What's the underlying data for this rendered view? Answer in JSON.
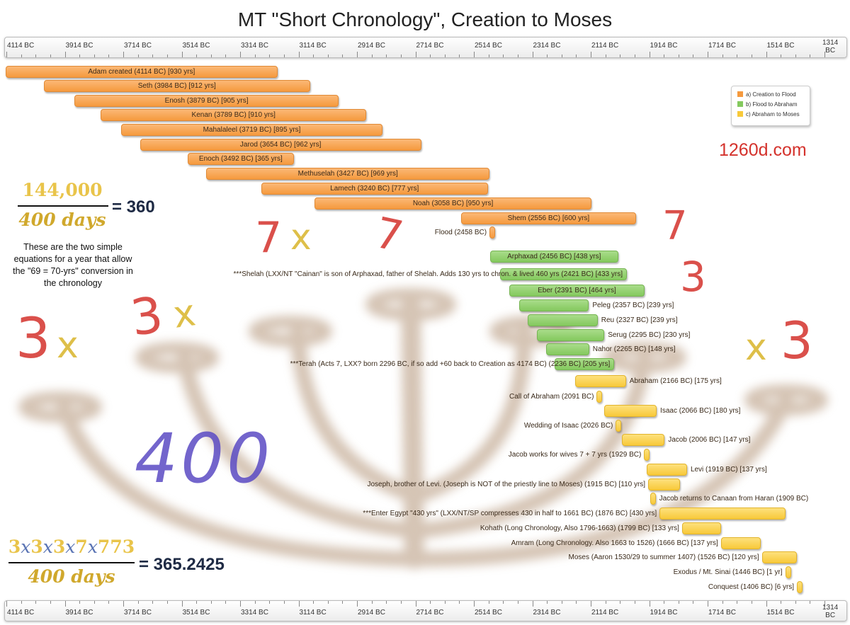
{
  "chart_data": {
    "type": "gantt",
    "title": "MT \"Short Chronology\", Creation to Moses",
    "axis": {
      "unit": "BC",
      "range": [
        4114,
        1314
      ],
      "tick_labels": [
        "4114 BC",
        "3914 BC",
        "3714 BC",
        "3514 BC",
        "3314 BC",
        "3114 BC",
        "2914 BC",
        "2714 BC",
        "2514 BC",
        "2314 BC",
        "2114 BC",
        "1914 BC",
        "1714 BC",
        "1514 BC",
        "1314 BC"
      ],
      "positions": [
        "top",
        "bottom"
      ]
    },
    "legend": {
      "placement": "top-right",
      "items": [
        {
          "label": "a) Creation to Flood",
          "color": "#f59a3e"
        },
        {
          "label": "b) Flood to Abraham",
          "color": "#84c95e"
        },
        {
          "label": "c) Abraham to Moses",
          "color": "#f8c93a"
        }
      ]
    },
    "series": [
      {
        "label": "Adam created (4114 BC) [930 yrs]",
        "start": 4114,
        "years": 930,
        "group": 0
      },
      {
        "label": "Seth (3984 BC) [912 yrs]",
        "start": 3984,
        "years": 912,
        "group": 0
      },
      {
        "label": "Enosh (3879 BC) [905 yrs]",
        "start": 3879,
        "years": 905,
        "group": 0
      },
      {
        "label": "Kenan (3789 BC) [910 yrs]",
        "start": 3789,
        "years": 910,
        "group": 0
      },
      {
        "label": "Mahalaleel (3719 BC) [895 yrs]",
        "start": 3719,
        "years": 895,
        "group": 0
      },
      {
        "label": "Jarod (3654 BC) [962 yrs]",
        "start": 3654,
        "years": 962,
        "group": 0
      },
      {
        "label": "Enoch (3492 BC) [365 yrs]",
        "start": 3492,
        "years": 365,
        "group": 0
      },
      {
        "label": "Methuselah (3427 BC) [969 yrs]",
        "start": 3427,
        "years": 969,
        "group": 0
      },
      {
        "label": "Lamech (3240 BC) [777 yrs]",
        "start": 3240,
        "years": 777,
        "group": 0
      },
      {
        "label": "Noah (3058 BC) [950 yrs]",
        "start": 3058,
        "years": 950,
        "group": 0
      },
      {
        "label": "Shem (2556 BC) [600 yrs]",
        "start": 2556,
        "years": 600,
        "group": 0
      },
      {
        "label": "Flood (2458 BC)",
        "start": 2458,
        "years": 1,
        "group": 0
      },
      {
        "label": "Arphaxad (2456 BC) [438 yrs]",
        "start": 2456,
        "years": 438,
        "group": 1
      },
      {
        "label": "***Shelah (LXX/NT \"Cainan\" is son of Arphaxad, father of Shelah. Adds 130 yrs to chron. & lived 460 yrs (2421 BC) [433 yrs]",
        "start": 2421,
        "years": 433,
        "group": 1
      },
      {
        "label": "Eber (2391 BC) [464 yrs]",
        "start": 2391,
        "years": 464,
        "group": 1
      },
      {
        "label": "Peleg (2357 BC) [239 yrs]",
        "start": 2357,
        "years": 239,
        "group": 1
      },
      {
        "label": "Reu (2327 BC) [239 yrs]",
        "start": 2327,
        "years": 239,
        "group": 1
      },
      {
        "label": "Serug (2295 BC) [230 yrs]",
        "start": 2295,
        "years": 230,
        "group": 1
      },
      {
        "label": "Nahor (2265 BC) [148 yrs]",
        "start": 2265,
        "years": 148,
        "group": 1
      },
      {
        "label": "***Terah (Acts 7, LXX? born 2296 BC, if so add +60 back to Creation as 4174 BC) (2236 BC) [205 yrs]",
        "start": 2236,
        "years": 205,
        "group": 1
      },
      {
        "label": "Abraham (2166 BC) [175 yrs]",
        "start": 2166,
        "years": 175,
        "group": 2
      },
      {
        "label": "Call of Abraham (2091 BC)",
        "start": 2091,
        "years": 1,
        "group": 2
      },
      {
        "label": "Isaac (2066 BC) [180 yrs]",
        "start": 2066,
        "years": 180,
        "group": 2
      },
      {
        "label": "Wedding of Isaac (2026 BC)",
        "start": 2026,
        "years": 1,
        "group": 2
      },
      {
        "label": "Jacob (2006 BC) [147 yrs]",
        "start": 2006,
        "years": 147,
        "group": 2
      },
      {
        "label": "Jacob works for wives 7 + 7 yrs (1929 BC)",
        "start": 1929,
        "years": 1,
        "group": 2
      },
      {
        "label": "Levi (1919 BC) [137 yrs]",
        "start": 1919,
        "years": 137,
        "group": 2
      },
      {
        "label": "Joseph, brother of Levi. (Joseph is NOT of the priestly line to Moses) (1915 BC) [110 yrs]",
        "start": 1915,
        "years": 110,
        "group": 2
      },
      {
        "label": "Jacob returns to Canaan from Haran (1909 BC)",
        "start": 1909,
        "years": 1,
        "group": 2
      },
      {
        "label": "***Enter Egypt \"430 yrs\" (LXX/NT/SP compresses 430 in half to 1661 BC) (1876 BC) [430 yrs]",
        "start": 1876,
        "years": 430,
        "group": 2
      },
      {
        "label": "Kohath (Long Chronology, Also 1796-1663) (1799 BC) [133 yrs]",
        "start": 1799,
        "years": 133,
        "group": 2
      },
      {
        "label": "Amram  (Long Chronology. Also 1663 to 1526) (1666 BC) [137 yrs]",
        "start": 1666,
        "years": 137,
        "group": 2
      },
      {
        "label": "Moses (Aaron 1530/29 to summer 1407) (1526 BC) [120 yrs]",
        "start": 1526,
        "years": 120,
        "group": 2
      },
      {
        "label": "Exodus / Mt. Sinai (1446 BC) [1 yr]",
        "start": 1446,
        "years": 1,
        "group": 2
      },
      {
        "label": "Conquest (1406 BC) [6 yrs]",
        "start": 1406,
        "years": 6,
        "group": 2
      }
    ]
  },
  "site": "1260d.com",
  "equation1": {
    "numerator": "144,000",
    "denominator": "400 days",
    "result": "= 360"
  },
  "note": "These are the two simple equations for a year that allow the \"69 = 70-yrs\" conversion in the chronology",
  "equation2": {
    "numerator": "3x3x3x7x773",
    "denominator": "400 days",
    "result": "= 365.2425"
  },
  "handwritten": {
    "a": "3",
    "b": "x",
    "c": "3",
    "d": "x",
    "e": "7",
    "f": "x",
    "g": "7",
    "h": "7",
    "i": "3",
    "j": "x",
    "k": "3",
    "l": "400"
  },
  "colors": {
    "orange": "#f59a3e",
    "green": "#84c95e",
    "yellow": "#f8c93a",
    "red": "#d4322c",
    "purple": "#5b4bc4"
  }
}
